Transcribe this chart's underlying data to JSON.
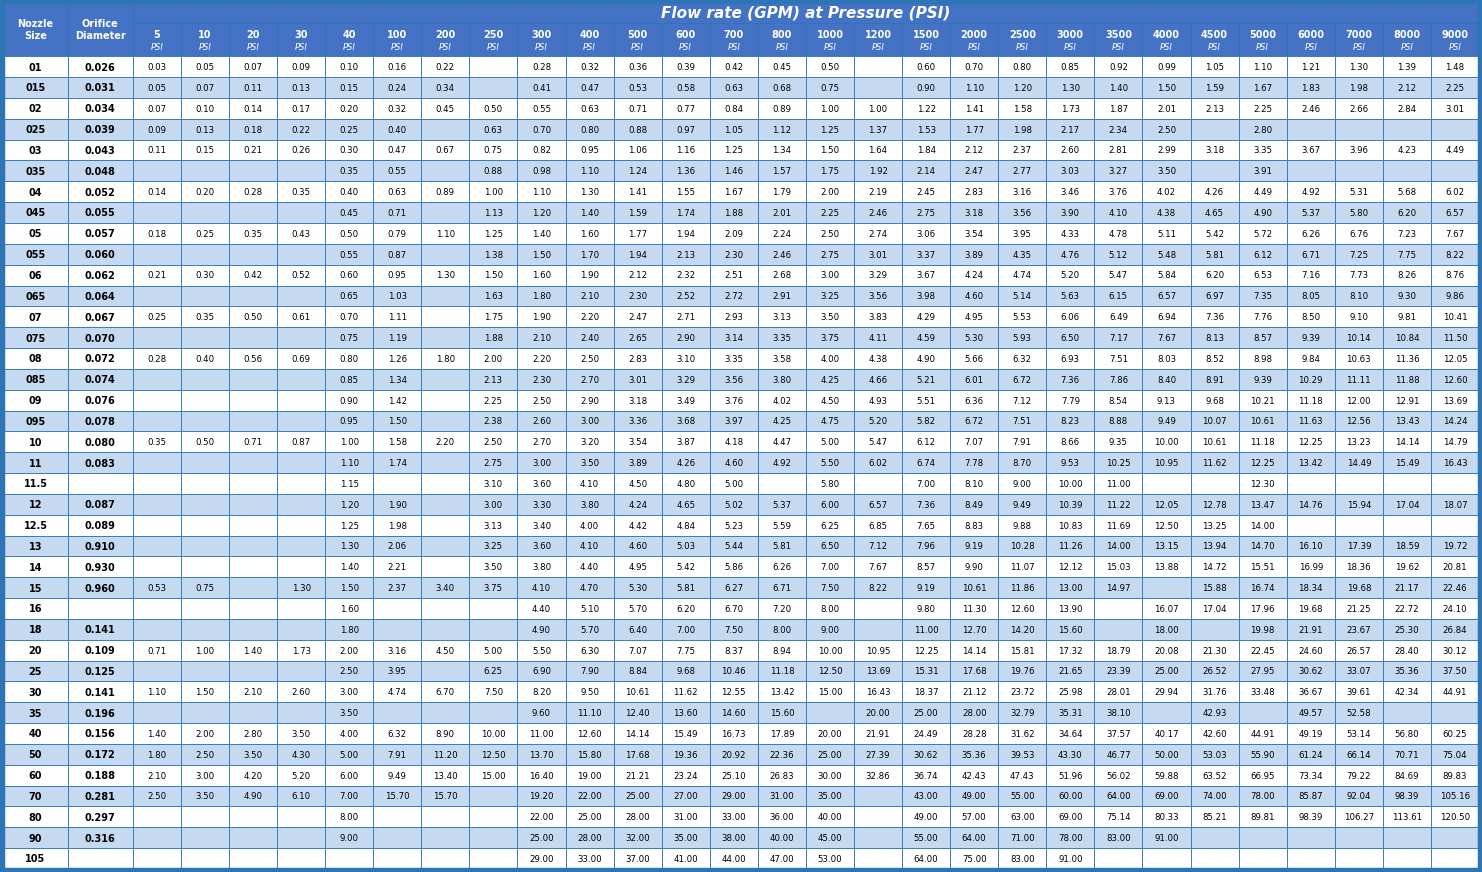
{
  "title": "Flow rate (GPM) at Pressure (PSI)",
  "psi_labels": [
    "5",
    "10",
    "20",
    "30",
    "40",
    "100",
    "200",
    "250",
    "300",
    "400",
    "500",
    "600",
    "700",
    "800",
    "1000",
    "1200",
    "1500",
    "2000",
    "2500",
    "3000",
    "3500",
    "4000",
    "4500",
    "5000",
    "6000",
    "7000",
    "8000",
    "9000"
  ],
  "rows": [
    [
      "01",
      "0.026",
      "0.03",
      "0.05",
      "0.07",
      "0.09",
      "0.10",
      "0.16",
      "0.22",
      "",
      "0.28",
      "0.32",
      "0.36",
      "0.39",
      "0.42",
      "0.45",
      "0.50",
      "",
      "0.60",
      "0.70",
      "0.80",
      "0.85",
      "0.92",
      "0.99",
      "1.05",
      "1.10",
      "1.21",
      "1.30",
      "1.39",
      "1.48"
    ],
    [
      "015",
      "0.031",
      "0.05",
      "0.07",
      "0.11",
      "0.13",
      "0.15",
      "0.24",
      "0.34",
      "",
      "0.41",
      "0.47",
      "0.53",
      "0.58",
      "0.63",
      "0.68",
      "0.75",
      "",
      "0.90",
      "1.10",
      "1.20",
      "1.30",
      "1.40",
      "1.50",
      "1.59",
      "1.67",
      "1.83",
      "1.98",
      "2.12",
      "2.25"
    ],
    [
      "02",
      "0.034",
      "0.07",
      "0.10",
      "0.14",
      "0.17",
      "0.20",
      "0.32",
      "0.45",
      "0.50",
      "0.55",
      "0.63",
      "0.71",
      "0.77",
      "0.84",
      "0.89",
      "1.00",
      "1.00",
      "1.22",
      "1.41",
      "1.58",
      "1.73",
      "1.87",
      "2.01",
      "2.13",
      "2.25",
      "2.46",
      "2.66",
      "2.84",
      "3.01"
    ],
    [
      "025",
      "0.039",
      "0.09",
      "0.13",
      "0.18",
      "0.22",
      "0.25",
      "0.40",
      "",
      "0.63",
      "0.70",
      "0.80",
      "0.88",
      "0.97",
      "1.05",
      "1.12",
      "1.25",
      "1.37",
      "1.53",
      "1.77",
      "1.98",
      "2.17",
      "2.34",
      "2.50",
      "",
      "2.80",
      "",
      "",
      "",
      ""
    ],
    [
      "03",
      "0.043",
      "0.11",
      "0.15",
      "0.21",
      "0.26",
      "0.30",
      "0.47",
      "0.67",
      "0.75",
      "0.82",
      "0.95",
      "1.06",
      "1.16",
      "1.25",
      "1.34",
      "1.50",
      "1.64",
      "1.84",
      "2.12",
      "2.37",
      "2.60",
      "2.81",
      "2.99",
      "3.18",
      "3.35",
      "3.67",
      "3.96",
      "4.23",
      "4.49"
    ],
    [
      "035",
      "0.048",
      "",
      "",
      "",
      "",
      "0.35",
      "0.55",
      "",
      "0.88",
      "0.98",
      "1.10",
      "1.24",
      "1.36",
      "1.46",
      "1.57",
      "1.75",
      "1.92",
      "2.14",
      "2.47",
      "2.77",
      "3.03",
      "3.27",
      "3.50",
      "",
      "3.91",
      "",
      "",
      "",
      ""
    ],
    [
      "04",
      "0.052",
      "0.14",
      "0.20",
      "0.28",
      "0.35",
      "0.40",
      "0.63",
      "0.89",
      "1.00",
      "1.10",
      "1.30",
      "1.41",
      "1.55",
      "1.67",
      "1.79",
      "2.00",
      "2.19",
      "2.45",
      "2.83",
      "3.16",
      "3.46",
      "3.76",
      "4.02",
      "4.26",
      "4.49",
      "4.92",
      "5.31",
      "5.68",
      "6.02"
    ],
    [
      "045",
      "0.055",
      "",
      "",
      "",
      "",
      "0.45",
      "0.71",
      "",
      "1.13",
      "1.20",
      "1.40",
      "1.59",
      "1.74",
      "1.88",
      "2.01",
      "2.25",
      "2.46",
      "2.75",
      "3.18",
      "3.56",
      "3.90",
      "4.10",
      "4.38",
      "4.65",
      "4.90",
      "5.37",
      "5.80",
      "6.20",
      "6.57"
    ],
    [
      "05",
      "0.057",
      "0.18",
      "0.25",
      "0.35",
      "0.43",
      "0.50",
      "0.79",
      "1.10",
      "1.25",
      "1.40",
      "1.60",
      "1.77",
      "1.94",
      "2.09",
      "2.24",
      "2.50",
      "2.74",
      "3.06",
      "3.54",
      "3.95",
      "4.33",
      "4.78",
      "5.11",
      "5.42",
      "5.72",
      "6.26",
      "6.76",
      "7.23",
      "7.67"
    ],
    [
      "055",
      "0.060",
      "",
      "",
      "",
      "",
      "0.55",
      "0.87",
      "",
      "1.38",
      "1.50",
      "1.70",
      "1.94",
      "2.13",
      "2.30",
      "2.46",
      "2.75",
      "3.01",
      "3.37",
      "3.89",
      "4.35",
      "4.76",
      "5.12",
      "5.48",
      "5.81",
      "6.12",
      "6.71",
      "7.25",
      "7.75",
      "8.22"
    ],
    [
      "06",
      "0.062",
      "0.21",
      "0.30",
      "0.42",
      "0.52",
      "0.60",
      "0.95",
      "1.30",
      "1.50",
      "1.60",
      "1.90",
      "2.12",
      "2.32",
      "2.51",
      "2.68",
      "3.00",
      "3.29",
      "3.67",
      "4.24",
      "4.74",
      "5.20",
      "5.47",
      "5.84",
      "6.20",
      "6.53",
      "7.16",
      "7.73",
      "8.26",
      "8.76"
    ],
    [
      "065",
      "0.064",
      "",
      "",
      "",
      "",
      "0.65",
      "1.03",
      "",
      "1.63",
      "1.80",
      "2.10",
      "2.30",
      "2.52",
      "2.72",
      "2.91",
      "3.25",
      "3.56",
      "3.98",
      "4.60",
      "5.14",
      "5.63",
      "6.15",
      "6.57",
      "6.97",
      "7.35",
      "8.05",
      "8.10",
      "9.30",
      "9.86"
    ],
    [
      "07",
      "0.067",
      "0.25",
      "0.35",
      "0.50",
      "0.61",
      "0.70",
      "1.11",
      "",
      "1.75",
      "1.90",
      "2.20",
      "2.47",
      "2.71",
      "2.93",
      "3.13",
      "3.50",
      "3.83",
      "4.29",
      "4.95",
      "5.53",
      "6.06",
      "6.49",
      "6.94",
      "7.36",
      "7.76",
      "8.50",
      "9.10",
      "9.81",
      "10.41"
    ],
    [
      "075",
      "0.070",
      "",
      "",
      "",
      "",
      "0.75",
      "1.19",
      "",
      "1.88",
      "2.10",
      "2.40",
      "2.65",
      "2.90",
      "3.14",
      "3.35",
      "3.75",
      "4.11",
      "4.59",
      "5.30",
      "5.93",
      "6.50",
      "7.17",
      "7.67",
      "8.13",
      "8.57",
      "9.39",
      "10.14",
      "10.84",
      "11.50"
    ],
    [
      "08",
      "0.072",
      "0.28",
      "0.40",
      "0.56",
      "0.69",
      "0.80",
      "1.26",
      "1.80",
      "2.00",
      "2.20",
      "2.50",
      "2.83",
      "3.10",
      "3.35",
      "3.58",
      "4.00",
      "4.38",
      "4.90",
      "5.66",
      "6.32",
      "6.93",
      "7.51",
      "8.03",
      "8.52",
      "8.98",
      "9.84",
      "10.63",
      "11.36",
      "12.05"
    ],
    [
      "085",
      "0.074",
      "",
      "",
      "",
      "",
      "0.85",
      "1.34",
      "",
      "2.13",
      "2.30",
      "2.70",
      "3.01",
      "3.29",
      "3.56",
      "3.80",
      "4.25",
      "4.66",
      "5.21",
      "6.01",
      "6.72",
      "7.36",
      "7.86",
      "8.40",
      "8.91",
      "9.39",
      "10.29",
      "11.11",
      "11.88",
      "12.60"
    ],
    [
      "09",
      "0.076",
      "",
      "",
      "",
      "",
      "0.90",
      "1.42",
      "",
      "2.25",
      "2.50",
      "2.90",
      "3.18",
      "3.49",
      "3.76",
      "4.02",
      "4.50",
      "4.93",
      "5.51",
      "6.36",
      "7.12",
      "7.79",
      "8.54",
      "9.13",
      "9.68",
      "10.21",
      "11.18",
      "12.00",
      "12.91",
      "13.69"
    ],
    [
      "095",
      "0.078",
      "",
      "",
      "",
      "",
      "0.95",
      "1.50",
      "",
      "2.38",
      "2.60",
      "3.00",
      "3.36",
      "3.68",
      "3.97",
      "4.25",
      "4.75",
      "5.20",
      "5.82",
      "6.72",
      "7.51",
      "8.23",
      "8.88",
      "9.49",
      "10.07",
      "10.61",
      "11.63",
      "12.56",
      "13.43",
      "14.24"
    ],
    [
      "10",
      "0.080",
      "0.35",
      "0.50",
      "0.71",
      "0.87",
      "1.00",
      "1.58",
      "2.20",
      "2.50",
      "2.70",
      "3.20",
      "3.54",
      "3.87",
      "4.18",
      "4.47",
      "5.00",
      "5.47",
      "6.12",
      "7.07",
      "7.91",
      "8.66",
      "9.35",
      "10.00",
      "10.61",
      "11.18",
      "12.25",
      "13.23",
      "14.14",
      "14.79"
    ],
    [
      "11",
      "0.083",
      "",
      "",
      "",
      "",
      "1.10",
      "1.74",
      "",
      "2.75",
      "3.00",
      "3.50",
      "3.89",
      "4.26",
      "4.60",
      "4.92",
      "5.50",
      "6.02",
      "6.74",
      "7.78",
      "8.70",
      "9.53",
      "10.25",
      "10.95",
      "11.62",
      "12.25",
      "13.42",
      "14.49",
      "15.49",
      "16.43"
    ],
    [
      "11.5",
      "",
      "",
      "",
      "",
      "",
      "1.15",
      "",
      "",
      "3.10",
      "3.60",
      "4.10",
      "4.50",
      "4.80",
      "5.00",
      "",
      "5.80",
      "",
      "7.00",
      "8.10",
      "9.00",
      "10.00",
      "11.00",
      "",
      "",
      "12.30",
      "",
      "",
      "",
      ""
    ],
    [
      "12",
      "0.087",
      "",
      "",
      "",
      "",
      "1.20",
      "1.90",
      "",
      "3.00",
      "3.30",
      "3.80",
      "4.24",
      "4.65",
      "5.02",
      "5.37",
      "6.00",
      "6.57",
      "7.36",
      "8.49",
      "9.49",
      "10.39",
      "11.22",
      "12.05",
      "12.78",
      "13.47",
      "14.76",
      "15.94",
      "17.04",
      "18.07"
    ],
    [
      "12.5",
      "0.089",
      "",
      "",
      "",
      "",
      "1.25",
      "1.98",
      "",
      "3.13",
      "3.40",
      "4.00",
      "4.42",
      "4.84",
      "5.23",
      "5.59",
      "6.25",
      "6.85",
      "7.65",
      "8.83",
      "9.88",
      "10.83",
      "11.69",
      "12.50",
      "13.25",
      "14.00",
      "",
      "",
      "",
      ""
    ],
    [
      "13",
      "0.910",
      "",
      "",
      "",
      "",
      "1.30",
      "2.06",
      "",
      "3.25",
      "3.60",
      "4.10",
      "4.60",
      "5.03",
      "5.44",
      "5.81",
      "6.50",
      "7.12",
      "7.96",
      "9.19",
      "10.28",
      "11.26",
      "14.00",
      "13.15",
      "13.94",
      "14.70",
      "16.10",
      "17.39",
      "18.59",
      "19.72"
    ],
    [
      "14",
      "0.930",
      "",
      "",
      "",
      "",
      "1.40",
      "2.21",
      "",
      "3.50",
      "3.80",
      "4.40",
      "4.95",
      "5.42",
      "5.86",
      "6.26",
      "7.00",
      "7.67",
      "8.57",
      "9.90",
      "11.07",
      "12.12",
      "15.03",
      "13.88",
      "14.72",
      "15.51",
      "16.99",
      "18.36",
      "19.62",
      "20.81"
    ],
    [
      "15",
      "0.960",
      "0.53",
      "0.75",
      "",
      "1.30",
      "1.50",
      "2.37",
      "3.40",
      "3.75",
      "4.10",
      "4.70",
      "5.30",
      "5.81",
      "6.27",
      "6.71",
      "7.50",
      "8.22",
      "9.19",
      "10.61",
      "11.86",
      "13.00",
      "14.97",
      "",
      "15.88",
      "16.74",
      "18.34",
      "19.68",
      "21.17",
      "22.46"
    ],
    [
      "16",
      "",
      "",
      "",
      "",
      "",
      "1.60",
      "",
      "",
      "",
      "4.40",
      "5.10",
      "5.70",
      "6.20",
      "6.70",
      "7.20",
      "8.00",
      "",
      "9.80",
      "11.30",
      "12.60",
      "13.90",
      "",
      "16.07",
      "17.04",
      "17.96",
      "19.68",
      "21.25",
      "22.72",
      "24.10"
    ],
    [
      "18",
      "0.141",
      "",
      "",
      "",
      "",
      "1.80",
      "",
      "",
      "",
      "4.90",
      "5.70",
      "6.40",
      "7.00",
      "7.50",
      "8.00",
      "9.00",
      "",
      "11.00",
      "12.70",
      "14.20",
      "15.60",
      "",
      "18.00",
      "",
      "19.98",
      "21.91",
      "23.67",
      "25.30",
      "26.84"
    ],
    [
      "20",
      "0.109",
      "0.71",
      "1.00",
      "1.40",
      "1.73",
      "2.00",
      "3.16",
      "4.50",
      "5.00",
      "5.50",
      "6.30",
      "7.07",
      "7.75",
      "8.37",
      "8.94",
      "10.00",
      "10.95",
      "12.25",
      "14.14",
      "15.81",
      "17.32",
      "18.79",
      "20.08",
      "21.30",
      "22.45",
      "24.60",
      "26.57",
      "28.40",
      "30.12"
    ],
    [
      "25",
      "0.125",
      "",
      "",
      "",
      "",
      "2.50",
      "3.95",
      "",
      "6.25",
      "6.90",
      "7.90",
      "8.84",
      "9.68",
      "10.46",
      "11.18",
      "12.50",
      "13.69",
      "15.31",
      "17.68",
      "19.76",
      "21.65",
      "23.39",
      "25.00",
      "26.52",
      "27.95",
      "30.62",
      "33.07",
      "35.36",
      "37.50"
    ],
    [
      "30",
      "0.141",
      "1.10",
      "1.50",
      "2.10",
      "2.60",
      "3.00",
      "4.74",
      "6.70",
      "7.50",
      "8.20",
      "9.50",
      "10.61",
      "11.62",
      "12.55",
      "13.42",
      "15.00",
      "16.43",
      "18.37",
      "21.12",
      "23.72",
      "25.98",
      "28.01",
      "29.94",
      "31.76",
      "33.48",
      "36.67",
      "39.61",
      "42.34",
      "44.91"
    ],
    [
      "35",
      "0.196",
      "",
      "",
      "",
      "",
      "3.50",
      "",
      "",
      "",
      "9.60",
      "11.10",
      "12.40",
      "13.60",
      "14.60",
      "15.60",
      "",
      "20.00",
      "25.00",
      "28.00",
      "32.79",
      "35.31",
      "38.10",
      "",
      "42.93",
      "",
      "49.57",
      "52.58",
      "",
      ""
    ],
    [
      "40",
      "0.156",
      "1.40",
      "2.00",
      "2.80",
      "3.50",
      "4.00",
      "6.32",
      "8.90",
      "10.00",
      "11.00",
      "12.60",
      "14.14",
      "15.49",
      "16.73",
      "17.89",
      "20.00",
      "21.91",
      "24.49",
      "28.28",
      "31.62",
      "34.64",
      "37.57",
      "40.17",
      "42.60",
      "44.91",
      "49.19",
      "53.14",
      "56.80",
      "60.25"
    ],
    [
      "50",
      "0.172",
      "1.80",
      "2.50",
      "3.50",
      "4.30",
      "5.00",
      "7.91",
      "11.20",
      "12.50",
      "13.70",
      "15.80",
      "17.68",
      "19.36",
      "20.92",
      "22.36",
      "25.00",
      "27.39",
      "30.62",
      "35.36",
      "39.53",
      "43.30",
      "46.77",
      "50.00",
      "53.03",
      "55.90",
      "61.24",
      "66.14",
      "70.71",
      "75.04"
    ],
    [
      "60",
      "0.188",
      "2.10",
      "3.00",
      "4.20",
      "5.20",
      "6.00",
      "9.49",
      "13.40",
      "15.00",
      "16.40",
      "19.00",
      "21.21",
      "23.24",
      "25.10",
      "26.83",
      "30.00",
      "32.86",
      "36.74",
      "42.43",
      "47.43",
      "51.96",
      "56.02",
      "59.88",
      "63.52",
      "66.95",
      "73.34",
      "79.22",
      "84.69",
      "89.83"
    ],
    [
      "70",
      "0.281",
      "2.50",
      "3.50",
      "4.90",
      "6.10",
      "7.00",
      "15.70",
      "15.70",
      "",
      "19.20",
      "22.00",
      "25.00",
      "27.00",
      "29.00",
      "31.00",
      "35.00",
      "",
      "43.00",
      "49.00",
      "55.00",
      "60.00",
      "64.00",
      "69.00",
      "74.00",
      "78.00",
      "85.87",
      "92.04",
      "98.39",
      "105.16"
    ],
    [
      "80",
      "0.297",
      "",
      "",
      "",
      "",
      "8.00",
      "",
      "",
      "",
      "22.00",
      "25.00",
      "28.00",
      "31.00",
      "33.00",
      "36.00",
      "40.00",
      "",
      "49.00",
      "57.00",
      "63.00",
      "69.00",
      "75.14",
      "80.33",
      "85.21",
      "89.81",
      "98.39",
      "106.27",
      "113.61",
      "120.50"
    ],
    [
      "90",
      "0.316",
      "",
      "",
      "",
      "",
      "9.00",
      "",
      "",
      "",
      "25.00",
      "28.00",
      "32.00",
      "35.00",
      "38.00",
      "40.00",
      "45.00",
      "",
      "55.00",
      "64.00",
      "71.00",
      "78.00",
      "83.00",
      "91.00",
      "",
      "",
      "",
      "",
      "",
      ""
    ],
    [
      "105",
      "",
      "",
      "",
      "",
      "",
      "",
      "",
      "",
      "",
      "29.00",
      "33.00",
      "37.00",
      "41.00",
      "44.00",
      "47.00",
      "53.00",
      "",
      "64.00",
      "75.00",
      "83.00",
      "91.00",
      "",
      "",
      "",
      "",
      "",
      "",
      "",
      ""
    ]
  ],
  "header_bg": "#4472C4",
  "header_fg": "#FFFFFF",
  "row_bg_odd": "#FFFFFF",
  "row_bg_even": "#C5D9F1",
  "border_color": "#2E75B6",
  "outer_border": "#2E75B6",
  "title_fontsize": 11,
  "header_fontsize": 7.0,
  "data_fontsize": 6.2,
  "fig_width": 15.0,
  "fig_height": 8.81
}
